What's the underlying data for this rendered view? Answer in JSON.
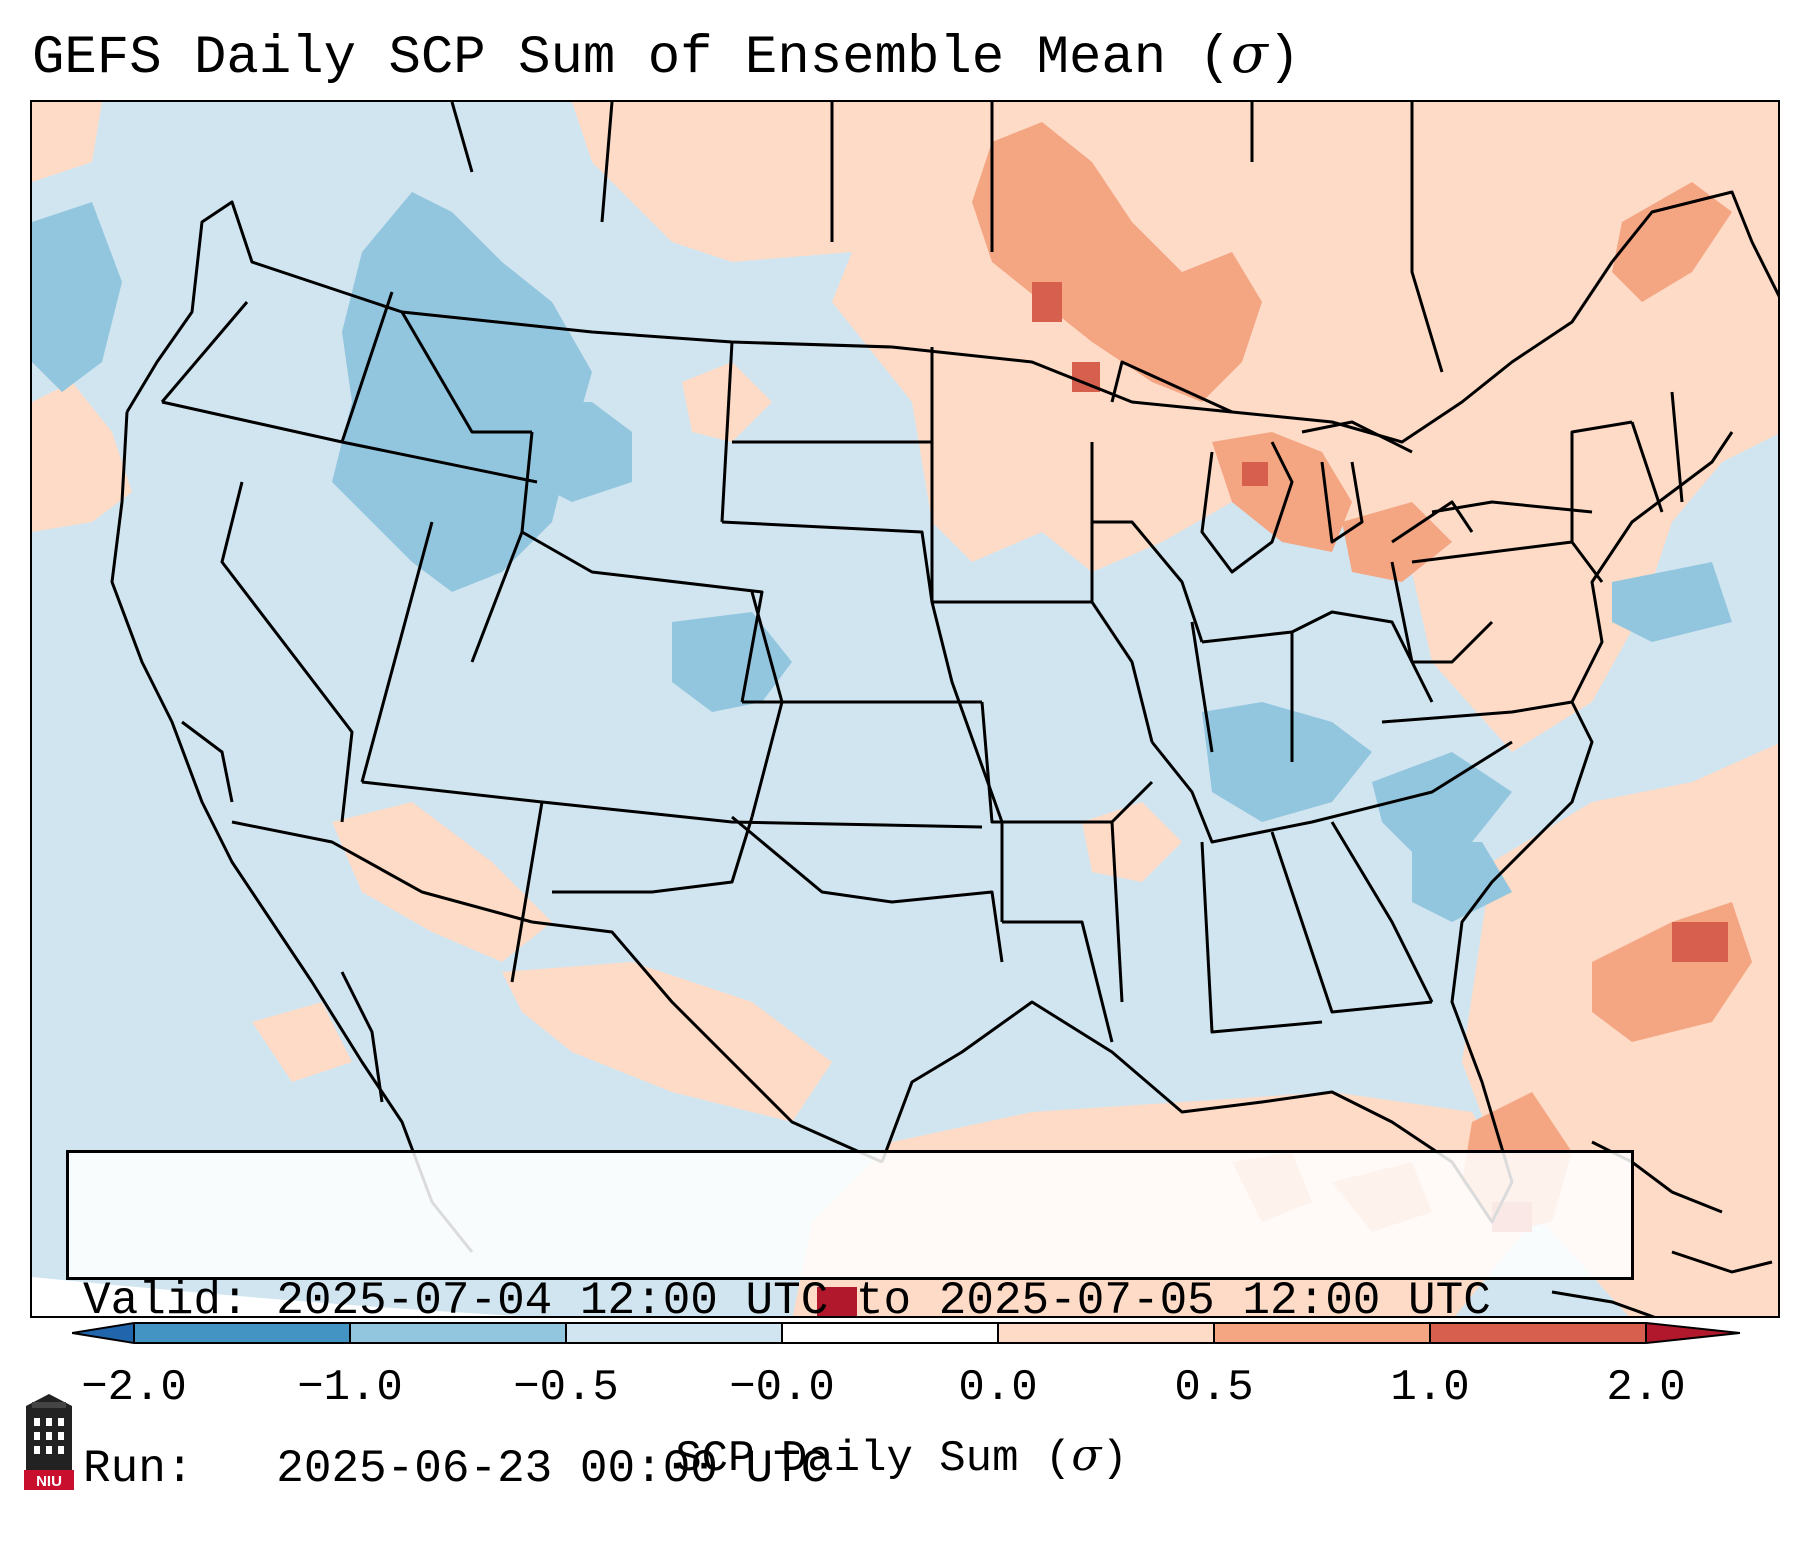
{
  "title": {
    "text": "GEFS Daily SCP Sum of Ensemble Mean (",
    "symbol": "σ",
    "close": ")"
  },
  "info": {
    "valid_line": "Valid: 2025-07-04 12:00 UTC to 2025-07-05 12:00 UTC",
    "run_line": "Run:   2025-06-23 00:00 UTC"
  },
  "colorbar": {
    "ticks": [
      "−2.0",
      "−1.0",
      "−0.5",
      "−0.0",
      "0.0",
      "0.5",
      "1.0",
      "2.0"
    ],
    "label_text": "SCP Daily Sum (",
    "label_symbol": "σ",
    "label_close": ")",
    "colors": {
      "extend_low": "#2166ac",
      "neg_strong": "#4393c3",
      "neg_mid": "#92c5de",
      "neg_weak": "#d1e5f0",
      "pos_weak": "#fddbc7",
      "pos_mid": "#f4a582",
      "pos_strong": "#d6604d",
      "extend_high": "#b2182b"
    }
  },
  "map": {
    "background_color": "#d1e5f0",
    "outline_color": "#000000"
  },
  "logo": {
    "text": "NIU",
    "color": "#c8102e"
  }
}
